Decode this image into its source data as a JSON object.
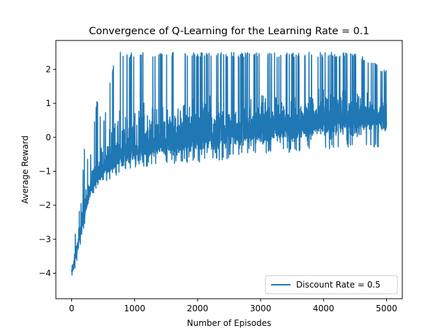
{
  "chart_data": {
    "type": "line",
    "title": "Convergence of Q-Learning for the Learning Rate = 0.1",
    "xlabel": "Number of Episodes",
    "ylabel": "Average Reward",
    "xlim": [
      -250,
      5250
    ],
    "ylim": [
      -4.75,
      2.85
    ],
    "xticks": [
      0,
      1000,
      2000,
      3000,
      4000,
      5000
    ],
    "xtick_labels": [
      "0",
      "1000",
      "2000",
      "3000",
      "4000",
      "5000"
    ],
    "yticks": [
      -4,
      -3,
      -2,
      -1,
      0,
      1,
      2
    ],
    "ytick_labels": [
      "−4",
      "−3",
      "−2",
      "−1",
      "0",
      "1",
      "2"
    ],
    "grid": false,
    "legend": {
      "position": "lower-right"
    },
    "series": [
      {
        "name": "Discount Rate = 0.5",
        "color": "#1f77b4",
        "envelope": {
          "x": [
            0,
            50,
            100,
            150,
            200,
            250,
            300,
            400,
            500,
            600,
            700,
            800,
            1000,
            1200,
            1500,
            2000,
            2500,
            3000,
            3500,
            4000,
            4500,
            5000
          ],
          "lower": [
            -4.4,
            -3.9,
            -3.5,
            -3.1,
            -2.6,
            -2.1,
            -1.8,
            -1.5,
            -1.35,
            -1.25,
            -1.15,
            -1.05,
            -0.95,
            -0.85,
            -0.8,
            -0.75,
            -0.65,
            -0.5,
            -0.45,
            -0.35,
            -0.3,
            -0.3
          ],
          "upper": [
            -3.6,
            -2.9,
            -2.3,
            -1.8,
            -0.3,
            -0.6,
            -0.5,
            1.1,
            0.4,
            1.6,
            2.5,
            2.5,
            2.5,
            2.5,
            2.5,
            2.5,
            2.5,
            2.5,
            2.5,
            2.5,
            2.5,
            2.0
          ]
        },
        "trend": {
          "x": [
            0,
            100,
            200,
            300,
            400,
            500,
            600,
            800,
            1000,
            1500,
            2000,
            2500,
            3000,
            3500,
            4000,
            4500,
            5000
          ],
          "y": [
            -4.0,
            -3.2,
            -2.3,
            -1.6,
            -1.2,
            -1.0,
            -0.8,
            -0.55,
            -0.4,
            -0.2,
            -0.05,
            0.1,
            0.2,
            0.3,
            0.4,
            0.5,
            0.55
          ]
        }
      }
    ]
  }
}
